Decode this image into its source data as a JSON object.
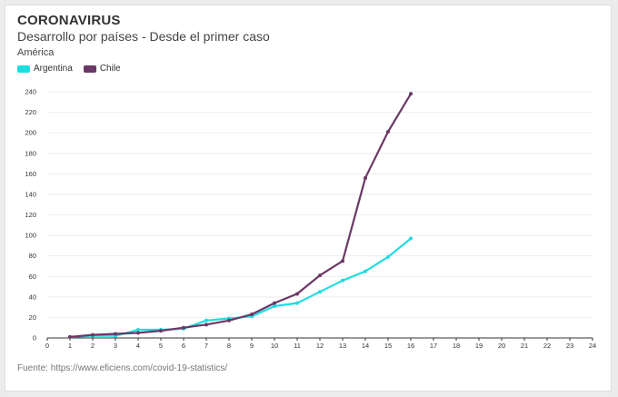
{
  "header": {
    "title": "CORONAVIRUS",
    "subtitle": "Desarrollo por países - Desde el primer caso",
    "region": "América"
  },
  "footer": {
    "source": "Fuente: https://www.eficiens.com/covid-19-statistics/"
  },
  "chart_data": {
    "type": "line",
    "x_ticks": [
      0,
      1,
      2,
      3,
      4,
      5,
      6,
      7,
      8,
      9,
      10,
      11,
      12,
      13,
      14,
      15,
      16,
      17,
      18,
      19,
      20,
      21,
      22,
      23,
      24
    ],
    "y_ticks": [
      0,
      20,
      40,
      60,
      80,
      100,
      120,
      140,
      160,
      180,
      200,
      220,
      240
    ],
    "xlim": [
      0,
      24
    ],
    "ylim": [
      0,
      240
    ],
    "grid": true,
    "legend_position": "top-left",
    "series": [
      {
        "name": "Argentina",
        "color": "#1fdde0",
        "x": [
          1,
          2,
          3,
          4,
          5,
          6,
          7,
          8,
          9,
          10,
          11,
          12,
          13,
          14,
          15,
          16
        ],
        "values": [
          1,
          2,
          2,
          8,
          8,
          9,
          17,
          19,
          21,
          31,
          34,
          45,
          56,
          65,
          79,
          97
        ]
      },
      {
        "name": "Chile",
        "color": "#6b3866",
        "x": [
          1,
          2,
          3,
          4,
          5,
          6,
          7,
          8,
          9,
          10,
          11,
          12,
          13,
          14,
          15,
          16
        ],
        "values": [
          1,
          3,
          4,
          5,
          7,
          10,
          13,
          17,
          23,
          34,
          43,
          61,
          75,
          156,
          201,
          238
        ]
      }
    ]
  }
}
